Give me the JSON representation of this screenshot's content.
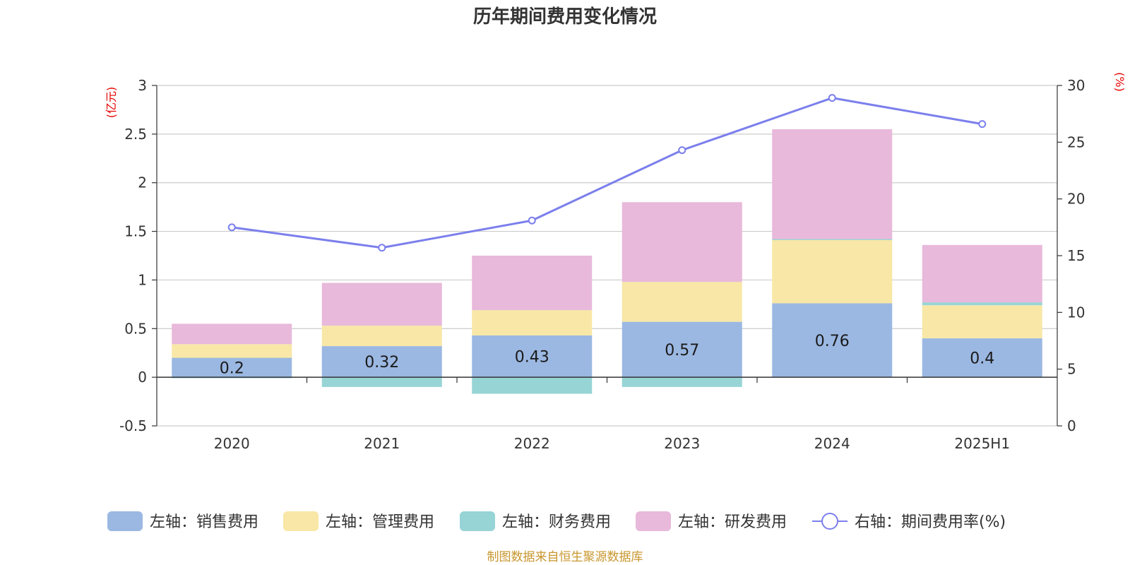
{
  "title": "历年期间费用变化情况",
  "source": "制图数据来自恒生聚源数据库",
  "chart_data": {
    "type": "bar",
    "stacked": true,
    "categories": [
      "2020",
      "2021",
      "2022",
      "2023",
      "2024",
      "2025H1"
    ],
    "left_axis": {
      "unit": "(亿元)",
      "ylim": [
        -0.5,
        3
      ],
      "ticks": [
        -0.5,
        0,
        0.5,
        1,
        1.5,
        2,
        2.5,
        3
      ]
    },
    "right_axis": {
      "unit": "(%)",
      "ylim": [
        0,
        30
      ],
      "ticks": [
        0,
        5,
        10,
        15,
        20,
        25,
        30
      ]
    },
    "series": [
      {
        "name": "左轴：销售费用",
        "axis": "left",
        "type": "bar",
        "color": "#9bb8e2",
        "labeled": true,
        "values": [
          0.2,
          0.32,
          0.43,
          0.57,
          0.76,
          0.4
        ]
      },
      {
        "name": "左轴：管理费用",
        "axis": "left",
        "type": "bar",
        "color": "#f8e7a6",
        "values": [
          0.14,
          0.21,
          0.26,
          0.41,
          0.65,
          0.34
        ]
      },
      {
        "name": "左轴：财务费用",
        "axis": "left",
        "type": "bar",
        "color": "#97d4d6",
        "values": [
          -0.01,
          -0.1,
          -0.17,
          -0.1,
          0.01,
          0.03
        ]
      },
      {
        "name": "左轴：研发费用",
        "axis": "left",
        "type": "bar",
        "color": "#e8b9da",
        "values": [
          0.21,
          0.44,
          0.56,
          0.82,
          1.13,
          0.59
        ]
      },
      {
        "name": "右轴：期间费用率(%)",
        "axis": "right",
        "type": "line",
        "color": "#7b7fec",
        "values": [
          17.5,
          15.7,
          18.1,
          24.3,
          28.9,
          26.6
        ]
      }
    ],
    "grid": true,
    "legend_position": "bottom"
  }
}
